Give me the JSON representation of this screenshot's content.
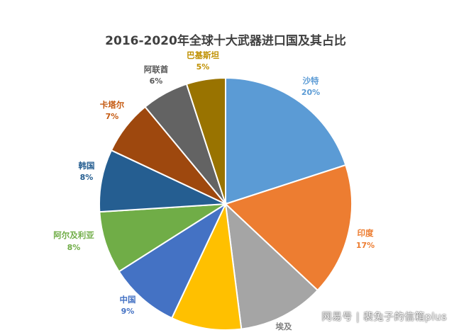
{
  "chart_data": {
    "type": "pie",
    "title": "2016-2020年全球十大武器进口国及其占比",
    "slices": [
      {
        "name": "沙特",
        "label": "20%",
        "value": 20,
        "color": "#5B9BD5"
      },
      {
        "name": "印度",
        "label": "17%",
        "value": 17,
        "color": "#ED7D31"
      },
      {
        "name": "埃及",
        "label": "",
        "value": 11,
        "color": "#A5A5A5"
      },
      {
        "name": "",
        "label": "",
        "value": 9,
        "color": "#FFC000"
      },
      {
        "name": "中国",
        "label": "9%",
        "value": 9,
        "color": "#4472C4"
      },
      {
        "name": "阿尔及利亚",
        "label": "8%",
        "value": 8,
        "color": "#70AD47"
      },
      {
        "name": "韩国",
        "label": "8%",
        "value": 8,
        "color": "#255E91"
      },
      {
        "name": "卡塔尔",
        "label": "7%",
        "value": 7,
        "color": "#9E480E"
      },
      {
        "name": "阿联酋",
        "label": "6%",
        "value": 6,
        "color": "#636363"
      },
      {
        "name": "巴基斯坦",
        "label": "5%",
        "value": 5,
        "color": "#997300"
      }
    ]
  },
  "watermark": "网易号 | 裴兔子的信箱plus"
}
